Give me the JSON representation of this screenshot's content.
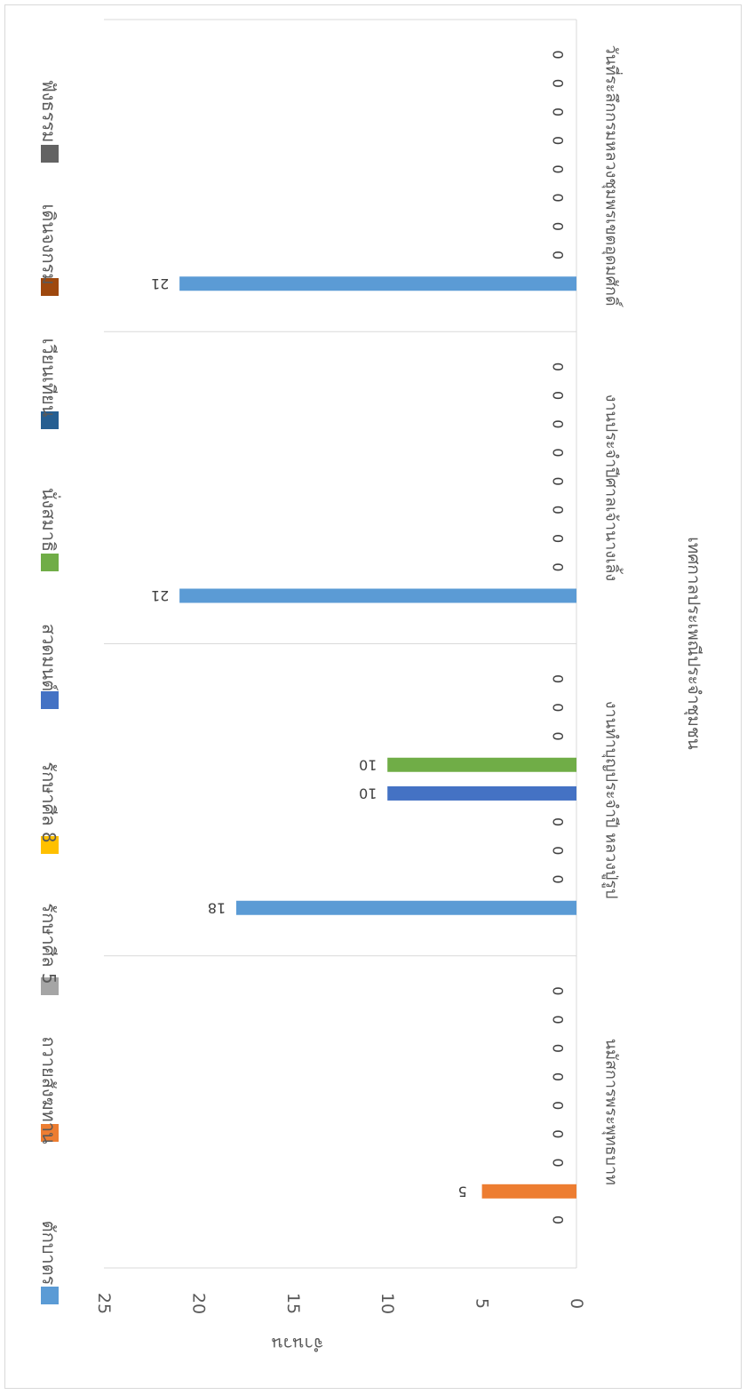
{
  "chart_data": {
    "type": "bar",
    "orientation": "horizontal",
    "title": "",
    "xlabel": "เทศกาลประเพณีประจำชุมชน",
    "ylabel": "จำนวน",
    "ylim": [
      0,
      25
    ],
    "yticks": [
      0,
      5,
      10,
      15,
      20,
      25
    ],
    "grid": false,
    "legend_position": "left",
    "categories": [
      "นมัสการพระพุทธบาท",
      "งานทำบุญประจำปี หลวงปู่รูป",
      "งานประจำปีศาลเจ้านางเลิ้ง",
      "วันที่ระลึกกรมหลวงชุมพรเขตอุดมศักดิ์"
    ],
    "series": [
      {
        "name": "ตักบาตร",
        "color": "#5b9bd5",
        "values": [
          0,
          18,
          21,
          21
        ]
      },
      {
        "name": "ถวายสังฆทาน",
        "color": "#ed7d31",
        "values": [
          5,
          0,
          0,
          0
        ]
      },
      {
        "name": "รักษาศีล 5",
        "color": "#a5a5a5",
        "values": [
          0,
          0,
          0,
          0
        ]
      },
      {
        "name": "รักษาศีล 8",
        "color": "#ffc000",
        "values": [
          0,
          0,
          0,
          0
        ]
      },
      {
        "name": "สวดมนต์",
        "color": "#4472c4",
        "values": [
          0,
          10,
          0,
          0
        ]
      },
      {
        "name": "นั่งสมาธิ",
        "color": "#70ad47",
        "values": [
          0,
          10,
          0,
          0
        ]
      },
      {
        "name": "เวียนเทียน",
        "color": "#255e91",
        "values": [
          0,
          0,
          0,
          0
        ]
      },
      {
        "name": "เดินจงกรม",
        "color": "#9e480e",
        "values": [
          0,
          0,
          0,
          0
        ]
      },
      {
        "name": "ฟังธรรม",
        "color": "#636363",
        "values": [
          0,
          0,
          0,
          0
        ]
      }
    ]
  }
}
